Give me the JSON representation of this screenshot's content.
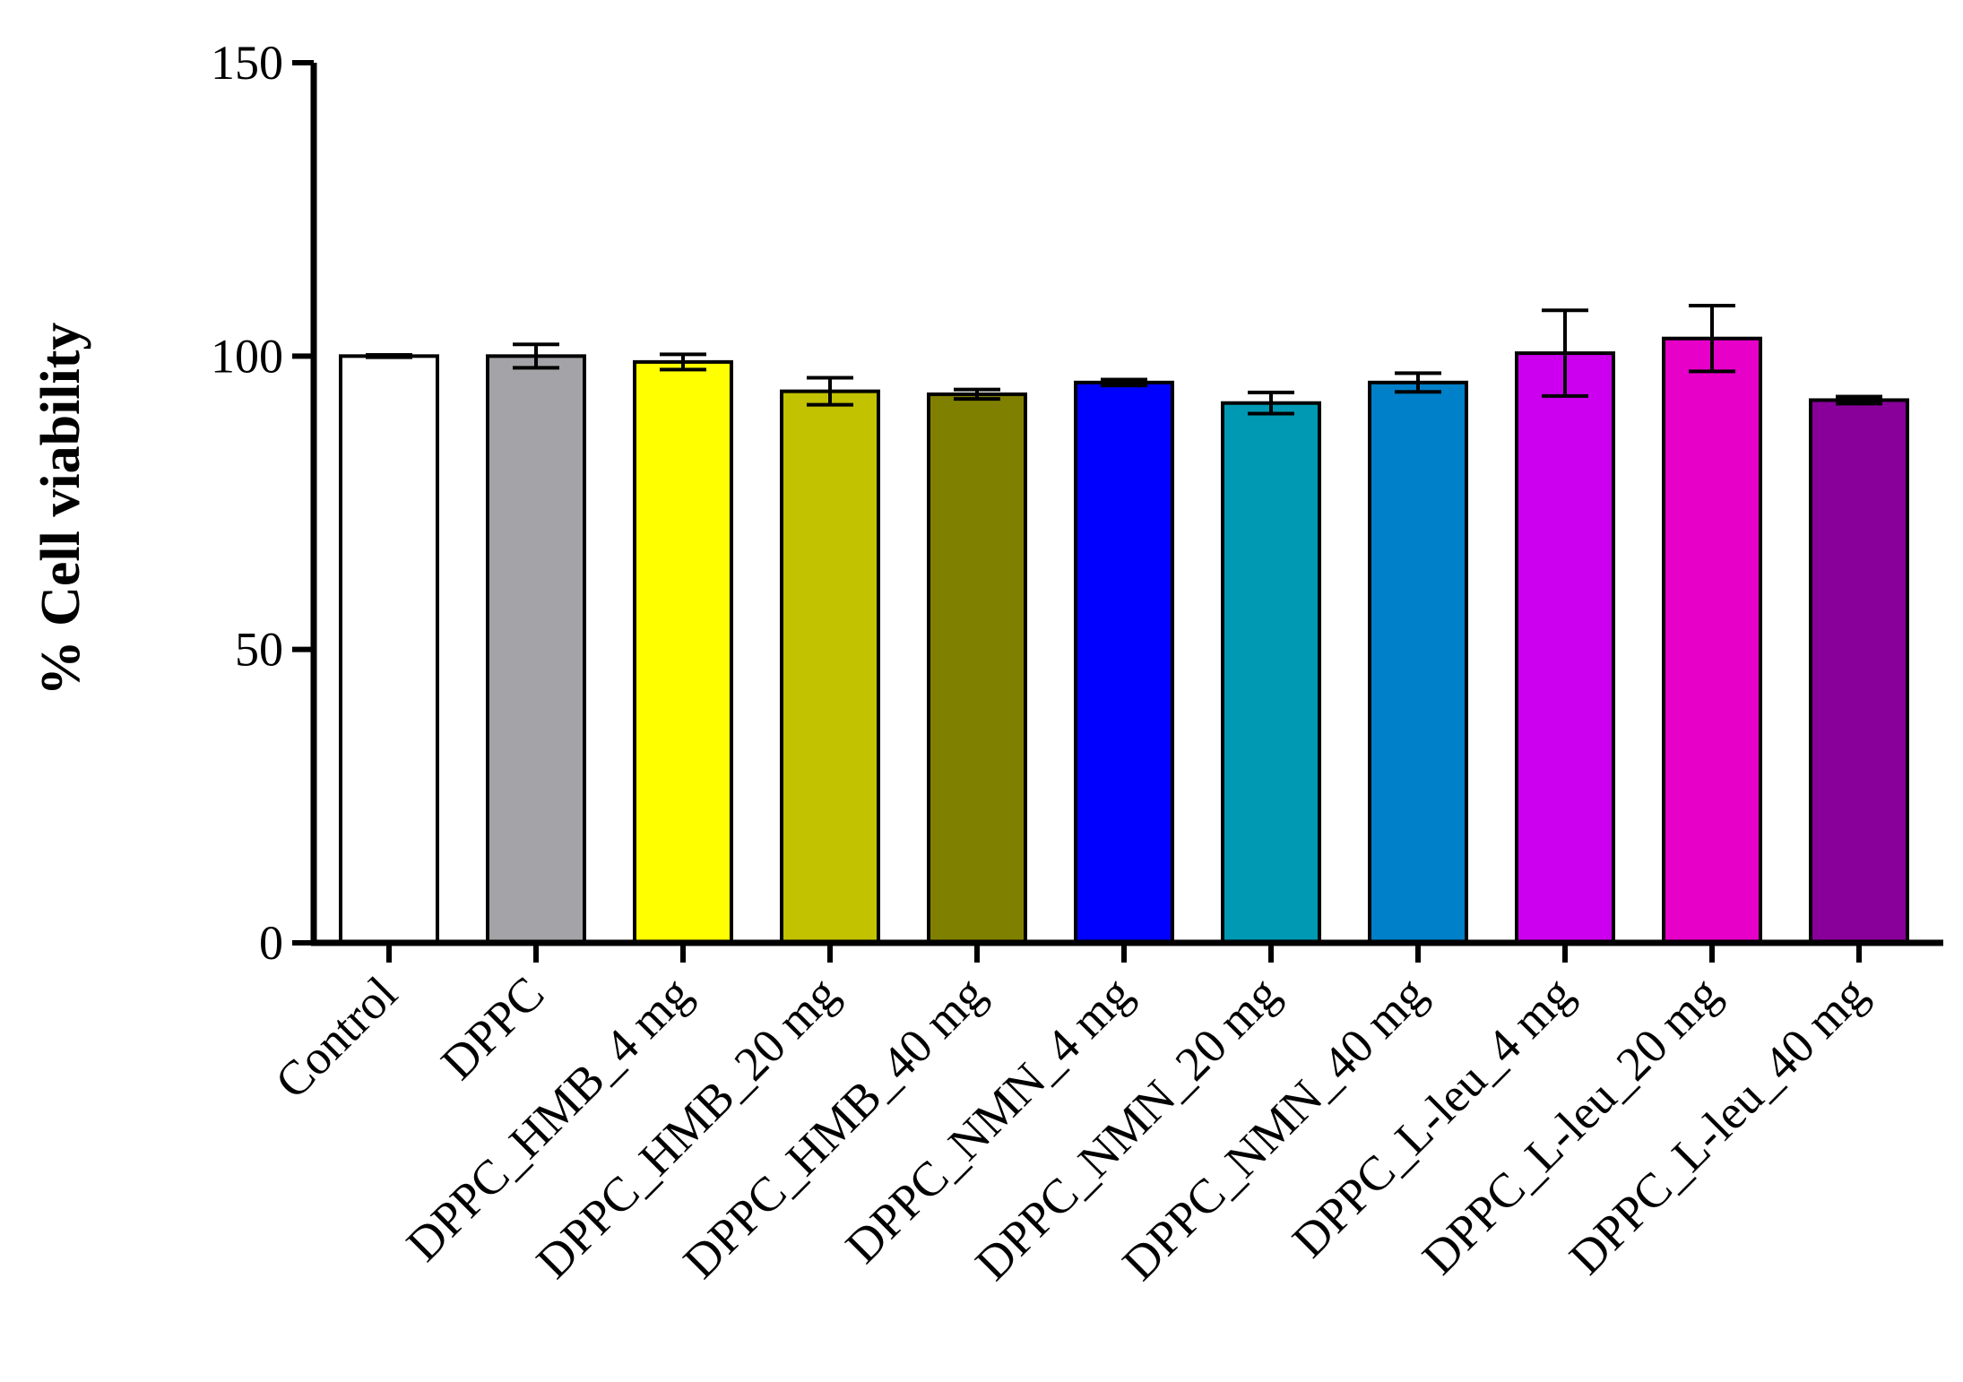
{
  "chart_data": {
    "type": "bar",
    "title": "",
    "xlabel": "",
    "ylabel": "% Cell viability",
    "ylim": [
      0,
      150
    ],
    "yticks": [
      0,
      50,
      100,
      150
    ],
    "grid": false,
    "legend": "none",
    "categories": [
      "Control",
      "DPPC",
      "DPPC_HMB_4 mg",
      "DPPC_HMB_20 mg",
      "DPPC_HMB_40 mg",
      "DPPC_NMN_4 mg",
      "DPPC_NMN_20 mg",
      "DPPC_NMN_40 mg",
      "DPPC_L-leu_4 mg",
      "DPPC_L-leu_20 mg",
      "DPPC_L-leu_40 mg"
    ],
    "values": [
      100,
      100,
      99,
      94,
      93.5,
      95.5,
      92,
      95.5,
      100.5,
      103,
      92.5
    ],
    "errors": [
      0.2,
      2,
      1.3,
      2.3,
      0.8,
      0.5,
      1.8,
      1.6,
      7.3,
      5.6,
      0.6
    ],
    "colors": [
      "#ffffff",
      "#a3a3a8",
      "#ffff00",
      "#c2c200",
      "#808000",
      "#0000ff",
      "#0099b3",
      "#0080c8",
      "#cc00ee",
      "#e600c8",
      "#880099"
    ],
    "edge_color": "#000000"
  }
}
